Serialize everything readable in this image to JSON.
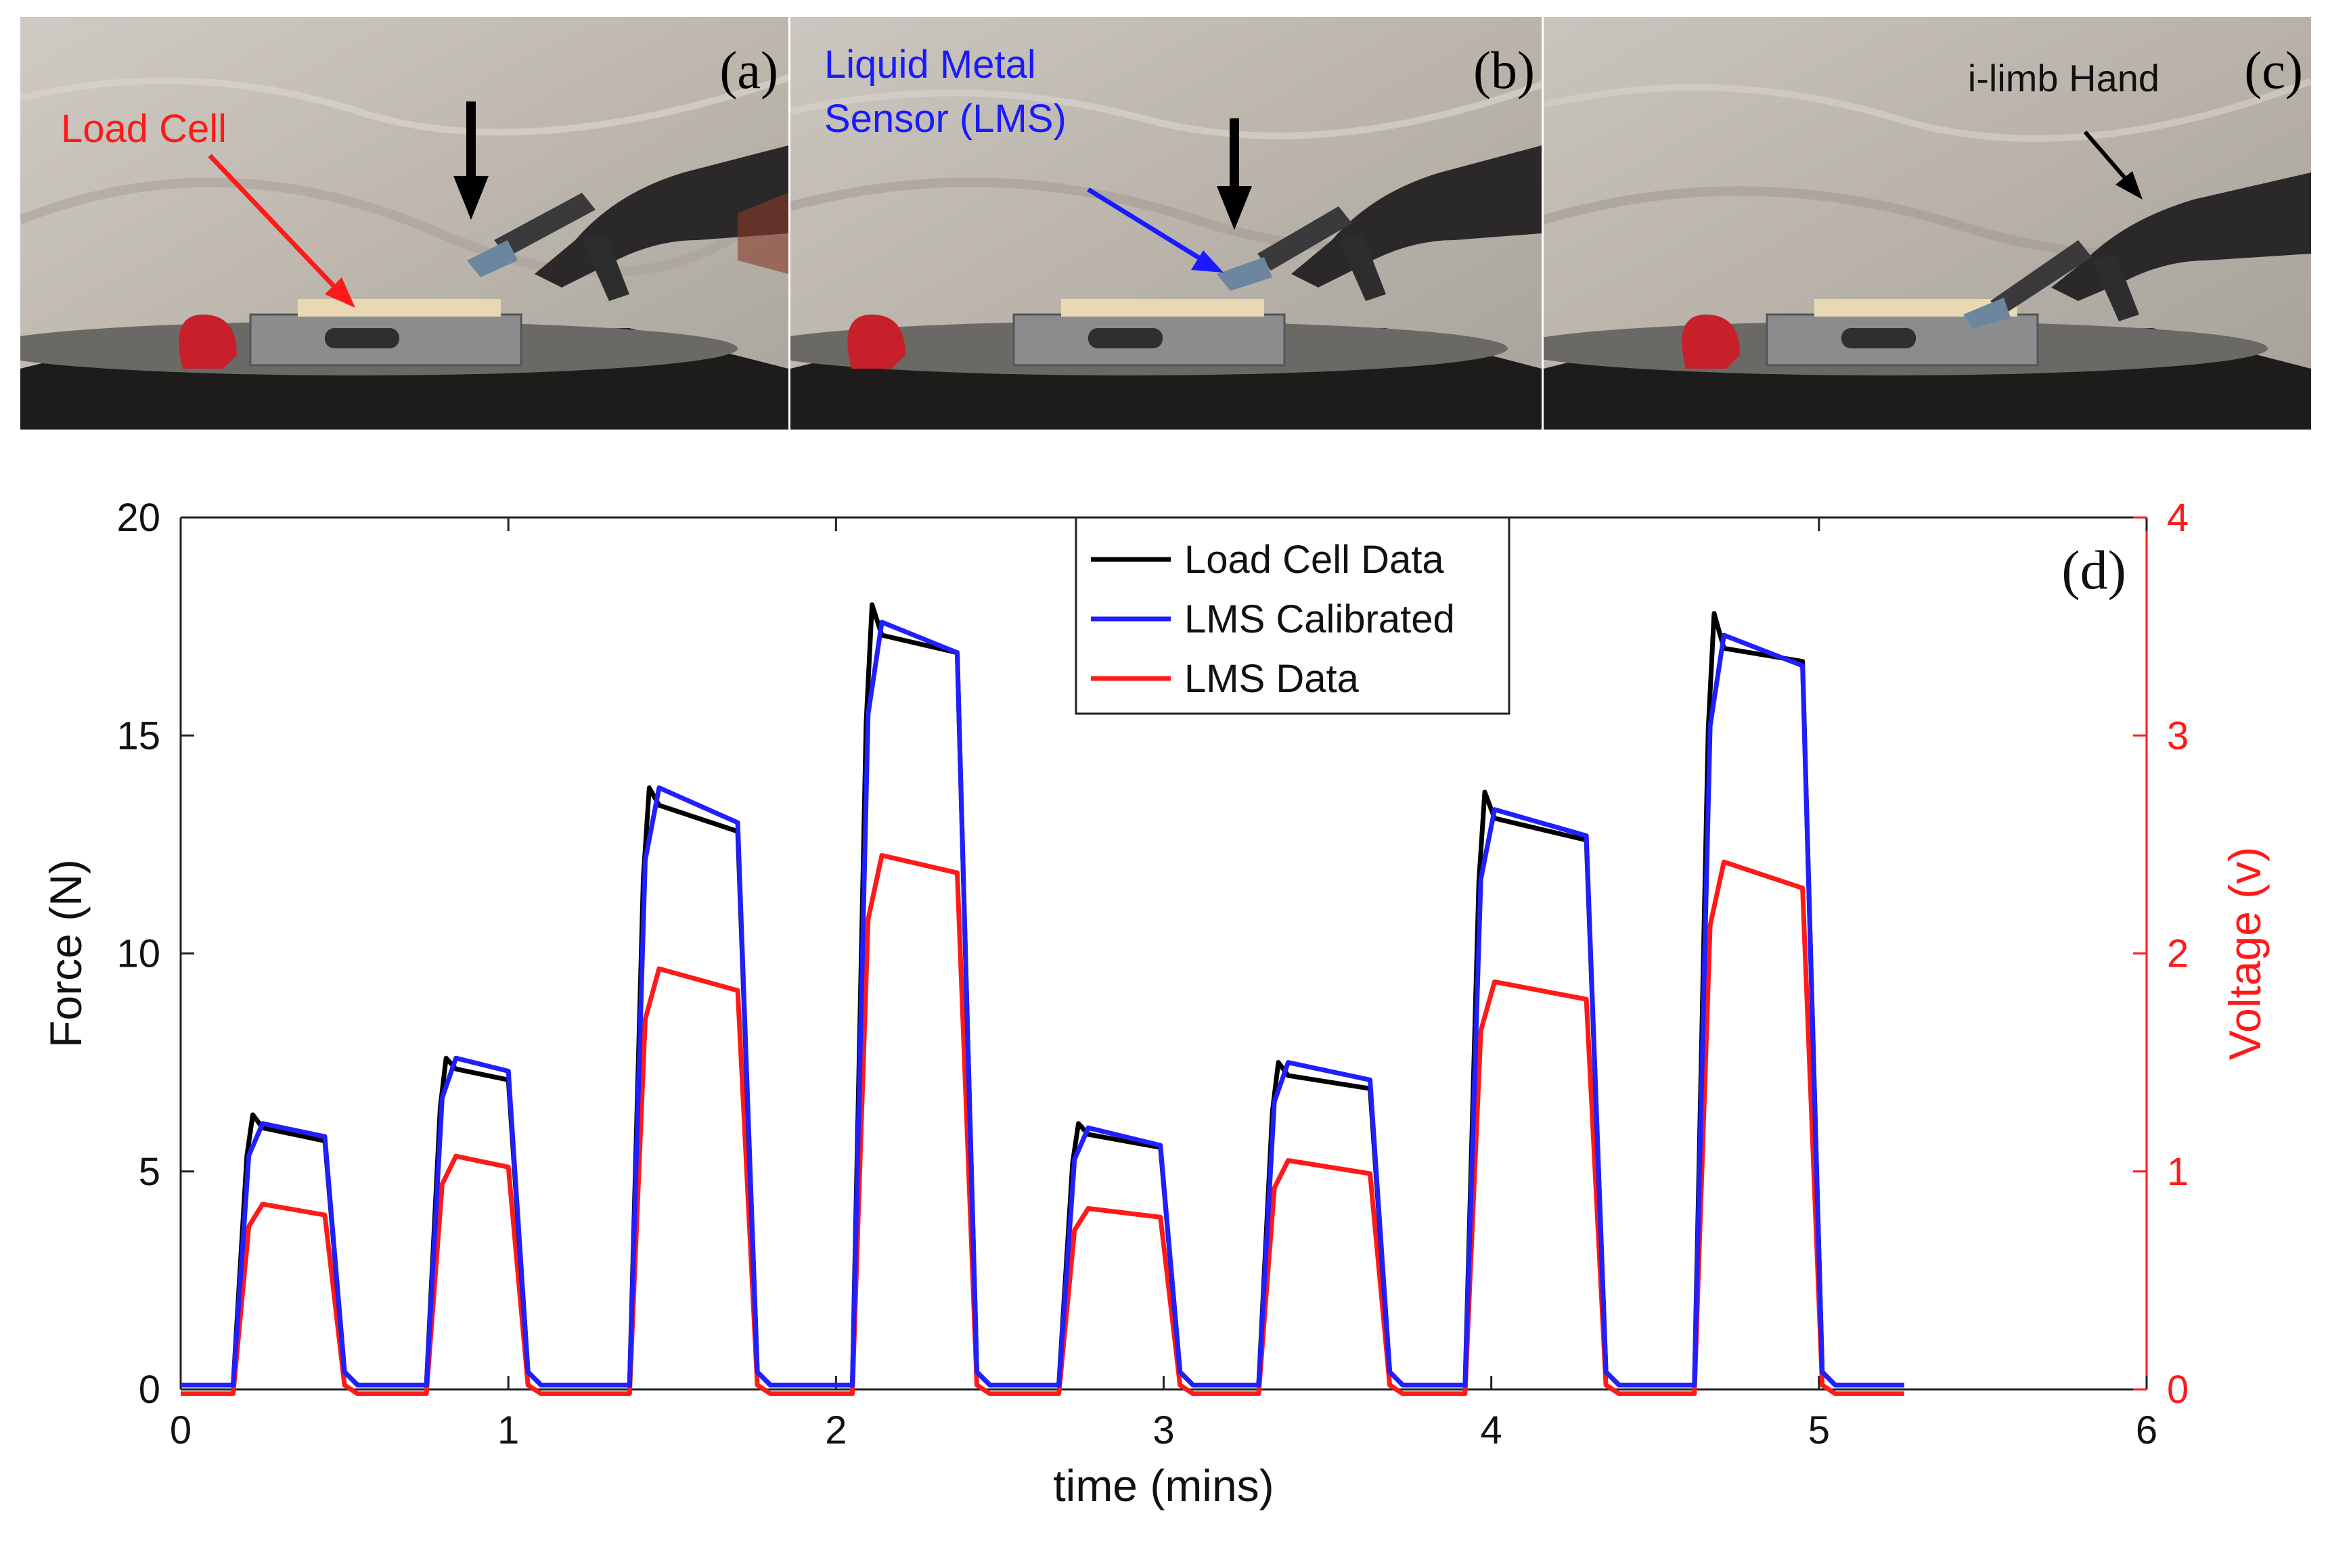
{
  "photos": [
    {
      "label": "(a)",
      "annotation": {
        "text": "Load Cell",
        "color": "#ff1a1a"
      }
    },
    {
      "label": "(b)",
      "annotation": {
        "lines": [
          "Liquid Metal",
          "Sensor (LMS)"
        ],
        "color": "#1a1aff"
      }
    },
    {
      "label": "(c)",
      "annotation": {
        "text": "i-limb Hand",
        "color": "#111111"
      }
    }
  ],
  "chart_data": {
    "type": "line",
    "panel_label": "(d)",
    "xlabel": "time (mins)",
    "ylabel_left": "Force (N)",
    "ylabel_right": "Voltage (v)",
    "xlim": [
      0,
      6
    ],
    "ylim_left": [
      0,
      20
    ],
    "ylim_right": [
      0,
      4
    ],
    "xticks": [
      "0",
      "1",
      "2",
      "3",
      "4",
      "5",
      "6"
    ],
    "yticks_left": [
      "0",
      "5",
      "10",
      "15",
      "20"
    ],
    "yticks_right": [
      "0",
      "1",
      "2",
      "3",
      "4"
    ],
    "legend": {
      "position": "top-center",
      "entries": [
        "Load Cell Data",
        "LMS Calibrated",
        "LMS Data"
      ]
    },
    "colors": {
      "load_cell": "#000000",
      "lms_calibrated": "#1f1fff",
      "lms_data": "#ff1a1a",
      "right_axis": "#ff1a1a"
    },
    "baseline_force": 0.1,
    "baseline_voltage": -0.02,
    "end_time": 5.26,
    "pulses": [
      {
        "start": 0.16,
        "end": 0.5,
        "load_peak": 6.3,
        "load_plateau": [
          6.0,
          5.7
        ],
        "lms_cal": [
          6.1,
          5.8
        ],
        "lms_volt": [
          0.85,
          0.8
        ]
      },
      {
        "start": 0.75,
        "end": 1.06,
        "load_peak": 7.6,
        "load_plateau": [
          7.35,
          7.1
        ],
        "lms_cal": [
          7.6,
          7.3
        ],
        "lms_volt": [
          1.07,
          1.02
        ]
      },
      {
        "start": 1.37,
        "end": 1.76,
        "load_peak": 13.8,
        "load_plateau": [
          13.4,
          12.8
        ],
        "lms_cal": [
          13.8,
          13.0
        ],
        "lms_volt": [
          1.93,
          1.83
        ]
      },
      {
        "start": 2.05,
        "end": 2.43,
        "load_peak": 18.0,
        "load_plateau": [
          17.3,
          16.9
        ],
        "lms_cal": [
          17.6,
          16.9
        ],
        "lms_volt": [
          2.45,
          2.37
        ]
      },
      {
        "start": 2.68,
        "end": 3.05,
        "load_peak": 6.1,
        "load_plateau": [
          5.85,
          5.55
        ],
        "lms_cal": [
          6.0,
          5.6
        ],
        "lms_volt": [
          0.83,
          0.79
        ]
      },
      {
        "start": 3.29,
        "end": 3.69,
        "load_peak": 7.5,
        "load_plateau": [
          7.2,
          6.9
        ],
        "lms_cal": [
          7.5,
          7.1
        ],
        "lms_volt": [
          1.05,
          0.99
        ]
      },
      {
        "start": 3.92,
        "end": 4.35,
        "load_peak": 13.7,
        "load_plateau": [
          13.1,
          12.6
        ],
        "lms_cal": [
          13.3,
          12.7
        ],
        "lms_volt": [
          1.87,
          1.79
        ]
      },
      {
        "start": 4.62,
        "end": 5.01,
        "load_peak": 17.8,
        "load_plateau": [
          17.0,
          16.7
        ],
        "lms_cal": [
          17.3,
          16.6
        ],
        "lms_volt": [
          2.42,
          2.3
        ]
      }
    ]
  }
}
